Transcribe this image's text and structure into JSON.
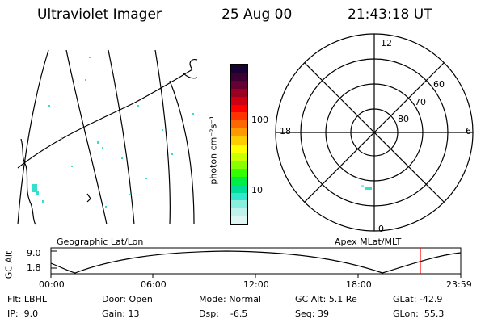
{
  "header": {
    "instrument": "Ultraviolet Imager",
    "date": "25 Aug 00",
    "time": "21:43:18 UT"
  },
  "colorbar": {
    "unit_label": "photon cm⁻²s⁻¹",
    "ticks": [
      "100",
      "10"
    ],
    "colors_top_to_bottom": [
      "#1a0033",
      "#3a0033",
      "#660033",
      "#990022",
      "#cc0011",
      "#ff0000",
      "#ff3300",
      "#ff6600",
      "#ff9900",
      "#ffcc00",
      "#ffff00",
      "#ccff00",
      "#88ff00",
      "#33ff00",
      "#00ee44",
      "#00dd99",
      "#33e6cc",
      "#88eedd",
      "#bff2ea",
      "#dff7f3"
    ]
  },
  "polar": {
    "mlt_labels": {
      "top": "12",
      "left": "18",
      "right": "6",
      "bottom": "0"
    },
    "lat_labels": [
      "60",
      "70",
      "80"
    ]
  },
  "map_captions": {
    "left": "Geographic Lat/Lon",
    "right": "Apex MLat/MLT"
  },
  "altitude_plot": {
    "ylabel": "GC Alt",
    "yticks": [
      "9.0",
      "1.8"
    ],
    "xticks": [
      "00:00",
      "06:00",
      "12:00",
      "18:00",
      "23:59"
    ],
    "current_marker_color": "#ff0000"
  },
  "info": [
    {
      "label": "Flt:",
      "value": "LBHL"
    },
    {
      "label": "Door:",
      "value": "Open"
    },
    {
      "label": "Mode:",
      "value": "Normal"
    },
    {
      "label": "GC Alt:",
      "value": "5.1 Re"
    },
    {
      "label": "GLat:",
      "value": "-42.9"
    },
    {
      "label": "IP:",
      "value": "9.0"
    },
    {
      "label": "Gain:",
      "value": "13"
    },
    {
      "label": "Dsp:",
      "value": "-6.5"
    },
    {
      "label": "Seq:",
      "value": "39"
    },
    {
      "label": "GLon:",
      "value": "55.3"
    }
  ],
  "accent_color": "#33e0cc"
}
